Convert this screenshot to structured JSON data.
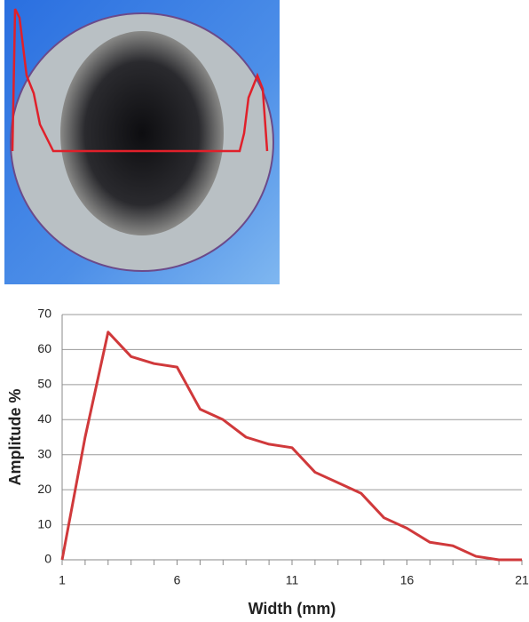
{
  "chart_data": {
    "type": "line",
    "x": [
      1,
      2,
      3,
      4,
      5,
      6,
      7,
      8,
      9,
      10,
      11,
      12,
      13,
      14,
      15,
      16,
      17,
      18,
      19,
      20,
      21
    ],
    "series": [
      {
        "name": "Amplitude",
        "color": "#d0393b",
        "values": [
          0,
          35,
          65,
          58,
          56,
          55,
          43,
          40,
          35,
          33,
          32,
          25,
          22,
          19,
          12,
          9,
          5,
          4,
          1,
          0,
          0
        ]
      }
    ],
    "xlabel": "Width (mm)",
    "ylabel": "Amplitude %",
    "xlim": [
      1,
      21
    ],
    "xticks": [
      1,
      6,
      11,
      16,
      21
    ],
    "ylim": [
      0,
      70
    ],
    "yticks": [
      0,
      10,
      20,
      30,
      40,
      50,
      60,
      70
    ],
    "grid": true
  }
}
